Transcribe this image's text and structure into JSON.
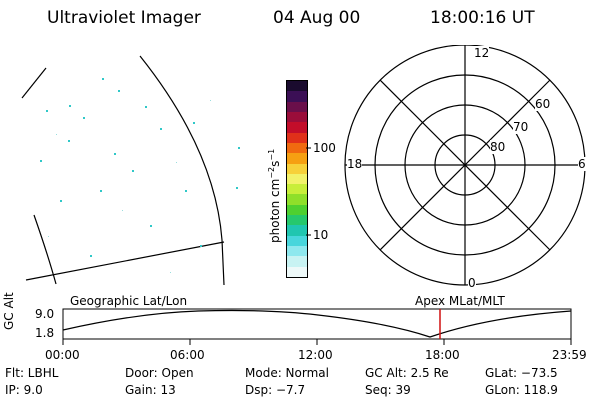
{
  "header": {
    "instrument": "Ultraviolet Imager",
    "date": "04 Aug 00",
    "time": "18:00:16 UT"
  },
  "colorbar": {
    "unit_main": "photon cm",
    "unit_exp1": "−2",
    "unit_mid": "s",
    "unit_exp2": "−1",
    "tick_100": "100",
    "tick_10": "10",
    "colors": [
      "#1a0b2e",
      "#3b0f55",
      "#6a0f4a",
      "#9a0d3a",
      "#c30d2a",
      "#e0301a",
      "#f06a10",
      "#f6a012",
      "#f7d13a",
      "#f2f26a",
      "#c8ee3a",
      "#8fdf2a",
      "#4ed030",
      "#26c86c",
      "#20c6b0",
      "#48d6dc",
      "#8ee8ee",
      "#c8f3f3",
      "#eef9f9"
    ]
  },
  "polar": {
    "mlt_12": "12",
    "mlt_18": "18",
    "mlt_6": "6",
    "mlt_0": "0",
    "lat_60": "60",
    "lat_70": "70",
    "lat_80": "80"
  },
  "timeline": {
    "left_title": "Geographic Lat/Lon",
    "right_title": "Apex MLat/MLT",
    "yaxis_label": "GC Alt",
    "y_top": "9.0",
    "y_bottom": "1.8",
    "t0": "00:00",
    "t1": "06:00",
    "t2": "12:00",
    "t3": "18:00",
    "t4": "23:59",
    "marker_color": "#d01010"
  },
  "info": {
    "flt": "Flt:  LBHL",
    "ip": "IP:  9.0",
    "door": "Door:  Open",
    "gain": "Gain:  13",
    "mode": "Mode:  Normal",
    "dsp": "Dsp:     −7.7",
    "gcalt": "GC Alt:  2.5 Re",
    "seq": "Seq:  39",
    "glat": "GLat:  −73.5",
    "glon": "GLon:  118.9"
  }
}
